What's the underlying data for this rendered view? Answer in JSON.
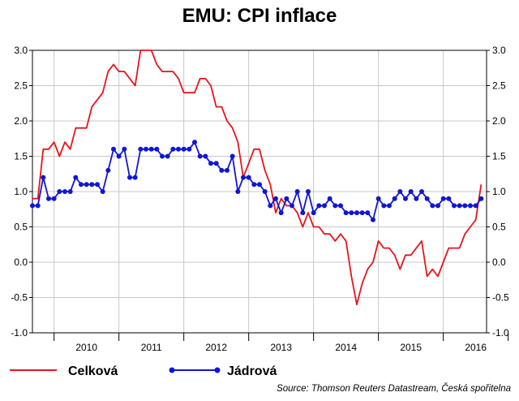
{
  "chart_data": {
    "type": "line",
    "title": "EMU: CPI inflace",
    "source": "Source: Thomson Reuters Datastream, Česká spořitelna",
    "ylim": [
      -1.0,
      3.0
    ],
    "yticks": [
      "3.0",
      "2.5",
      "2.0",
      "1.5",
      "1.0",
      "0.5",
      "0.0",
      "-0.5",
      "-1.0"
    ],
    "ytick_values": [
      3.0,
      2.5,
      2.0,
      1.5,
      1.0,
      0.5,
      0.0,
      -0.5,
      -1.0
    ],
    "xlim": [
      "2009-09",
      "2016-09"
    ],
    "xticks": [
      "2010",
      "2011",
      "2012",
      "2013",
      "2014",
      "2015",
      "2016"
    ],
    "grid": true,
    "legend": "bottom-left",
    "start": "2009-09",
    "colors": {
      "celkova": "#e8141b",
      "jadrova": "#1016d6",
      "grid": "#c8c8c8"
    },
    "series": [
      {
        "name": "Celková",
        "key": "celkova",
        "marker": "none",
        "values": [
          0.9,
          0.9,
          1.6,
          1.6,
          1.7,
          1.5,
          1.7,
          1.6,
          1.9,
          1.9,
          1.9,
          2.2,
          2.3,
          2.4,
          2.7,
          2.8,
          2.7,
          2.7,
          2.6,
          2.5,
          3.0,
          3.0,
          3.0,
          2.8,
          2.7,
          2.7,
          2.7,
          2.6,
          2.4,
          2.4,
          2.4,
          2.6,
          2.6,
          2.5,
          2.2,
          2.2,
          2.0,
          1.9,
          1.7,
          1.2,
          1.4,
          1.6,
          1.6,
          1.3,
          1.1,
          0.7,
          0.9,
          0.8,
          0.8,
          0.7,
          0.5,
          0.7,
          0.5,
          0.5,
          0.4,
          0.4,
          0.3,
          0.4,
          0.3,
          -0.2,
          -0.6,
          -0.3,
          -0.1,
          0.0,
          0.3,
          0.2,
          0.2,
          0.1,
          -0.1,
          0.1,
          0.1,
          0.2,
          0.3,
          -0.2,
          -0.1,
          -0.2,
          0.0,
          0.2,
          0.2,
          0.2,
          0.4,
          0.5,
          0.6,
          1.1
        ]
      },
      {
        "name": "Jádrová",
        "key": "jadrova",
        "marker": "circle",
        "values": [
          0.8,
          0.8,
          1.2,
          0.9,
          0.9,
          1.0,
          1.0,
          1.0,
          1.2,
          1.1,
          1.1,
          1.1,
          1.1,
          1.0,
          1.3,
          1.6,
          1.5,
          1.6,
          1.2,
          1.2,
          1.6,
          1.6,
          1.6,
          1.6,
          1.5,
          1.5,
          1.6,
          1.6,
          1.6,
          1.6,
          1.7,
          1.5,
          1.5,
          1.4,
          1.4,
          1.3,
          1.3,
          1.5,
          1.0,
          1.2,
          1.2,
          1.1,
          1.1,
          1.0,
          0.8,
          0.9,
          0.7,
          0.9,
          0.8,
          1.0,
          0.7,
          1.0,
          0.7,
          0.8,
          0.8,
          0.9,
          0.8,
          0.8,
          0.7,
          0.7,
          0.7,
          0.7,
          0.7,
          0.6,
          0.9,
          0.8,
          0.8,
          0.9,
          1.0,
          0.9,
          1.0,
          0.9,
          1.0,
          0.9,
          0.8,
          0.8,
          0.9,
          0.9,
          0.8,
          0.8,
          0.8,
          0.8,
          0.8,
          0.9
        ]
      }
    ]
  }
}
